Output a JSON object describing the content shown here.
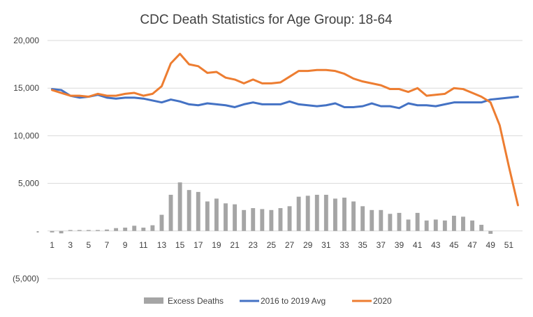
{
  "chart_data": {
    "type": "bar+line",
    "title": "CDC Death Statistics for Age Group: 18-64",
    "xlabel": "",
    "ylabel": "",
    "ylim": [
      -5000,
      20000
    ],
    "y_ticks": [
      -5000,
      0,
      5000,
      10000,
      15000,
      20000
    ],
    "y_tick_labels": [
      "(5,000)",
      "-",
      "5,000",
      "10,000",
      "15,000",
      "20,000"
    ],
    "x": [
      1,
      2,
      3,
      4,
      5,
      6,
      7,
      8,
      9,
      10,
      11,
      12,
      13,
      14,
      15,
      16,
      17,
      18,
      19,
      20,
      21,
      22,
      23,
      24,
      25,
      26,
      27,
      28,
      29,
      30,
      31,
      32,
      33,
      34,
      35,
      36,
      37,
      38,
      39,
      40,
      41,
      42,
      43,
      44,
      45,
      46,
      47,
      48,
      49,
      50,
      51,
      52
    ],
    "x_tick_labels": [
      "1",
      "3",
      "5",
      "7",
      "9",
      "11",
      "13",
      "15",
      "17",
      "19",
      "21",
      "23",
      "25",
      "27",
      "29",
      "31",
      "33",
      "35",
      "37",
      "39",
      "41",
      "43",
      "45",
      "47",
      "49",
      "51"
    ],
    "grid": true,
    "legend_position": "bottom",
    "series": [
      {
        "name": "Excess Deaths",
        "kind": "bar",
        "color": "#a5a5a5",
        "values": [
          -150,
          -250,
          100,
          100,
          100,
          100,
          150,
          300,
          350,
          550,
          350,
          600,
          1700,
          3800,
          5100,
          4300,
          4100,
          3100,
          3400,
          2900,
          2800,
          2200,
          2400,
          2300,
          2200,
          2400,
          2600,
          3600,
          3700,
          3800,
          3800,
          3400,
          3500,
          3100,
          2600,
          2200,
          2200,
          1800,
          1900,
          1200,
          1900,
          1100,
          1200,
          1100,
          1600,
          1500,
          1100,
          650,
          -300,
          0,
          0,
          0
        ]
      },
      {
        "name": "2016 to 2019 Avg",
        "kind": "line",
        "color": "#4472c4",
        "values": [
          14900,
          14800,
          14200,
          14000,
          14100,
          14300,
          14000,
          13900,
          14000,
          14000,
          13900,
          13700,
          13500,
          13800,
          13600,
          13300,
          13200,
          13400,
          13300,
          13200,
          13000,
          13300,
          13500,
          13300,
          13300,
          13300,
          13600,
          13300,
          13200,
          13100,
          13200,
          13400,
          13000,
          13000,
          13100,
          13400,
          13100,
          13100,
          12900,
          13400,
          13200,
          13200,
          13100,
          13300,
          13500,
          13500,
          13500,
          13500,
          13800,
          13900,
          14000,
          14100
        ]
      },
      {
        "name": "2020",
        "kind": "line",
        "color": "#ed7d31",
        "values": [
          14800,
          14500,
          14200,
          14200,
          14100,
          14400,
          14200,
          14200,
          14400,
          14500,
          14200,
          14400,
          15200,
          17600,
          18600,
          17500,
          17300,
          16600,
          16700,
          16100,
          15900,
          15500,
          15900,
          15500,
          15500,
          15600,
          16200,
          16800,
          16800,
          16900,
          16900,
          16800,
          16500,
          16000,
          15700,
          15500,
          15300,
          14900,
          14900,
          14600,
          15000,
          14200,
          14300,
          14400,
          15000,
          14900,
          14500,
          14100,
          13500,
          11100,
          6800,
          2700
        ]
      }
    ]
  }
}
